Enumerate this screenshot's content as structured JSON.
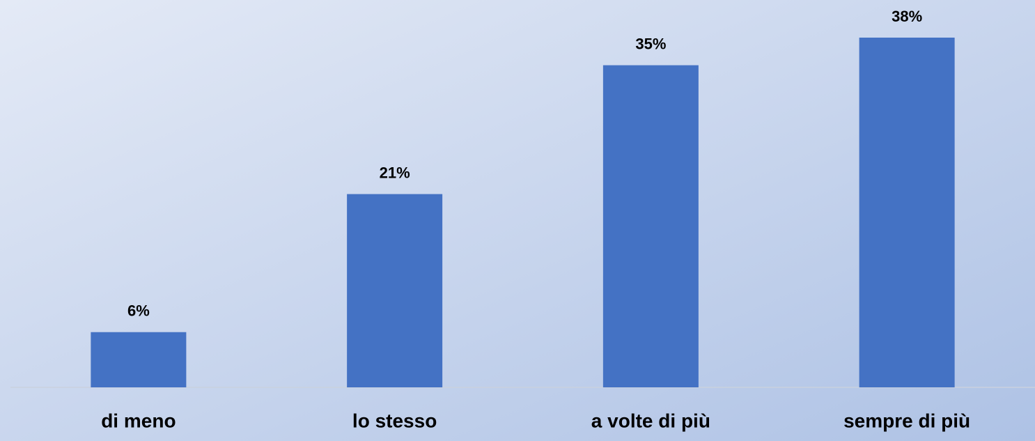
{
  "chart_data": {
    "type": "bar",
    "categories": [
      "di meno",
      "lo stesso",
      "a volte di più",
      "sempre di più"
    ],
    "values": [
      6,
      21,
      35,
      38
    ],
    "value_labels": [
      "6%",
      "21%",
      "35%",
      "38%"
    ],
    "color": "#4472c4"
  }
}
